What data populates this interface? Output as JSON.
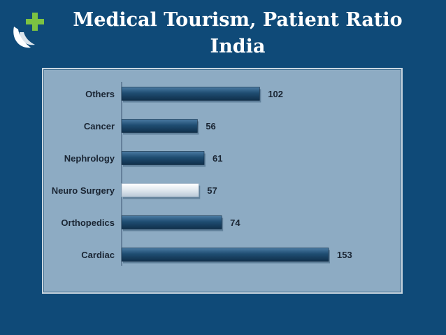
{
  "slide": {
    "title_line1": "Medical Tourism, Patient Ratio",
    "title_line2": "India"
  },
  "logo": {
    "icon": "medical-cross-leaf-logo",
    "colors": {
      "cross": "#7cc242",
      "leaf": "#ffffff"
    }
  },
  "colors": {
    "background": "#0f4a78",
    "panel": "#8dabc3"
  },
  "chart_data": {
    "type": "bar",
    "orientation": "horizontal",
    "title": "",
    "xlabel": "",
    "ylabel": "",
    "categories": [
      "Others",
      "Cancer",
      "Nephrology",
      "Neuro Surgery",
      "Orthopedics",
      "Cardiac"
    ],
    "values": [
      102,
      56,
      61,
      57,
      74,
      153
    ],
    "bar_colors": [
      "#1f4d72",
      "#1f4d72",
      "#1f4d72",
      "#e9eef3",
      "#1a3f5f",
      "#163a58"
    ],
    "xlim": [
      0,
      160
    ],
    "grid": false,
    "legend": false
  }
}
